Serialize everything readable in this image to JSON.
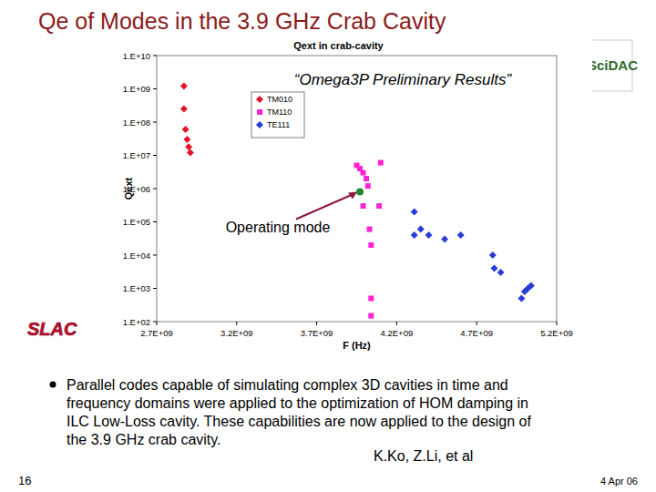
{
  "slide": {
    "title": "Qe of Modes in the 3.9 GHz Crab Cavity",
    "bullet": [
      "Parallel codes capable of simulating complex 3D cavities in time and",
      "frequency domains were applied to the optimization of HOM damping in",
      "ILC Low-Loss cavity. These capabilities are now applied to the design of",
      "the 3.9 GHz crab cavity."
    ],
    "authors": "K.Ko, Z.Li, et al",
    "page": "16",
    "date": "4 Apr 06",
    "logo_left": "SLAC",
    "logo_right": "SciDAC"
  },
  "chart_data": {
    "type": "scatter",
    "title": "Qext in crab-cavity",
    "subtitle": "“Omega3P Preliminary Results”",
    "x_label": "F (Hz)",
    "y_label": "Qext",
    "log": "y",
    "grid": false,
    "legend": "top-left",
    "xlim": [
      2700000000,
      5200000000
    ],
    "xticks": [
      {
        "value": 2700000000,
        "label": "2.7E+09"
      },
      {
        "value": 3200000000,
        "label": "3.2E+09"
      },
      {
        "value": 3700000000,
        "label": "3.7E+09"
      },
      {
        "value": 4200000000,
        "label": "4.2E+09"
      },
      {
        "value": 4700000000,
        "label": "4.7E+09"
      },
      {
        "value": 5200000000,
        "label": "5.2E+09"
      }
    ],
    "ylim": [
      100,
      10000000000
    ],
    "yticks": [
      {
        "value": 100,
        "label": "1.E+02"
      },
      {
        "value": 1000,
        "label": "1.E+03"
      },
      {
        "value": 10000,
        "label": "1.E+04"
      },
      {
        "value": 100000,
        "label": "1.E+05"
      },
      {
        "value": 1000000,
        "label": "1.E+06"
      },
      {
        "value": 10000000,
        "label": "1.E+07"
      },
      {
        "value": 100000000,
        "label": "1.E+08"
      },
      {
        "value": 1000000000,
        "label": "1.E+09"
      },
      {
        "value": 10000000000,
        "label": "1.E+10"
      }
    ],
    "series": [
      {
        "name": "TM010",
        "color": "#e3142d",
        "marker": "diamond",
        "x": [
          2870000000,
          2870000000,
          2880000000,
          2890000000,
          2900000000,
          2910000000
        ],
        "values": [
          1200000000,
          250000000,
          60000000,
          30000000,
          18000000,
          12000000
        ]
      },
      {
        "name": "TM110",
        "color": "#ff22d4",
        "marker": "square",
        "x": [
          3950000000,
          3970000000,
          3990000000,
          4010000000,
          4020000000,
          3990000000,
          4030000000,
          4040000000,
          4100000000,
          4090000000,
          4040000000,
          4040000000
        ],
        "values": [
          5000000,
          4000000,
          3000000,
          2000000,
          1200000,
          300000,
          60000,
          20000,
          6000000,
          300000,
          500,
          150
        ]
      },
      {
        "name": "TE111",
        "color": "#2a3cd6",
        "marker": "diamond",
        "x": [
          4310000000,
          4310000000,
          4350000000,
          4400000000,
          4500000000,
          4600000000,
          4800000000,
          4810000000,
          4850000000,
          4980000000,
          5000000000,
          5020000000,
          5040000000
        ],
        "values": [
          200000,
          40000,
          60000,
          40000,
          30000,
          40000,
          10000,
          4000,
          3000,
          500,
          800,
          1000,
          1200
        ]
      }
    ],
    "annotations": [
      {
        "text": "Operating mode",
        "x": 3970000000,
        "y": 800000
      }
    ]
  }
}
